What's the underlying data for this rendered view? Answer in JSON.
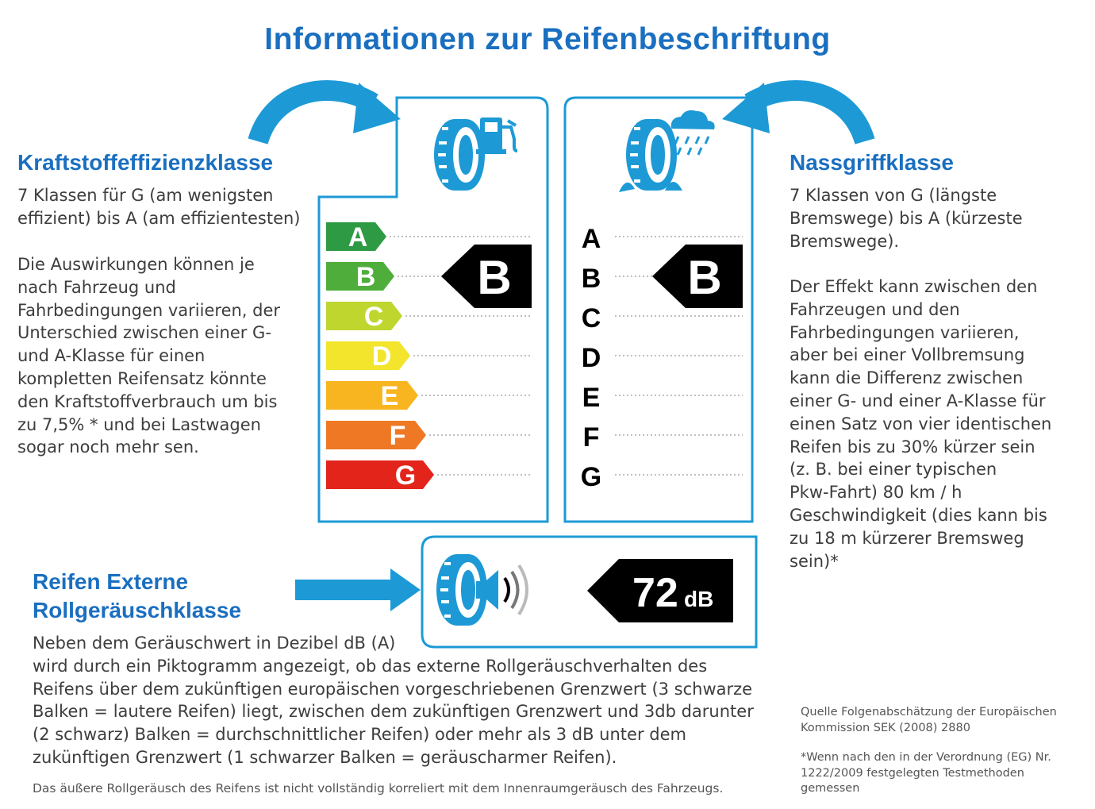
{
  "title": "Informationen zur Reifenbeschriftung",
  "fuel": {
    "heading": "Kraftstoffeffizienzklasse",
    "text1": "7 Klassen für G (am wenigsten\neffizient) bis A (am effizientesten)",
    "text2": "Die Auswirkungen können je\nnach Fahrzeug und\nFahrbedingungen variieren, der\nUnterschied zwischen einer G-\nund A-Klasse für einen\nkompletten Reifensatz könnte\nden Kraftstoffverbrauch um bis\nzu 7,5% * und bei Lastwagen\nsogar noch mehr sen.",
    "classes": [
      "A",
      "B",
      "C",
      "D",
      "E",
      "F",
      "G"
    ],
    "class_colors": [
      "#2e9a43",
      "#4fae3b",
      "#bfd62e",
      "#f2e52c",
      "#f8b51f",
      "#ee7823",
      "#e3241b"
    ],
    "selected": "B",
    "icon": "tire-fuel-pump-icon"
  },
  "wet": {
    "heading": "Nassgriffklasse",
    "text1": "7 Klassen von G (längste\nBremswege) bis A (kürzeste\nBremswege).",
    "text2": "Der Effekt kann zwischen den\nFahrzeugen und den\nFahrbedingungen variieren,\naber bei einer Vollbremsung\nkann die Differenz zwischen\neiner G- und einer A-Klasse für\neinen Satz von vier identischen\nReifen bis zu 30% kürzer sein\n(z. B. bei einer typischen\nPkw-Fahrt) 80 km / h\nGeschwindigkeit (dies kann bis\nzu 18 m kürzerer Bremsweg\nsein)*",
    "classes": [
      "A",
      "B",
      "C",
      "D",
      "E",
      "F",
      "G"
    ],
    "selected": "B",
    "icon": "tire-rain-cloud-icon"
  },
  "noise": {
    "heading1": "Reifen Externe",
    "heading2": "Rollgeräuschklasse",
    "value": "72",
    "unit": "dB",
    "text": "Neben dem Geräuschwert in Dezibel dB (A)\nwird durch ein Piktogramm angezeigt, ob das externe Rollgeräuschverhalten des\nReifens über dem zukünftigen europäischen vorgeschriebenen Grenzwert (3 schwarze\nBalken = lautere Reifen) liegt, zwischen dem zukünftigen Grenzwert und 3db darunter\n(2 schwarz) Balken = durchschnittlicher Reifen) oder mehr als 3 dB unter dem\nzukünftigen Grenzwert (1 schwarzer Balken = geräuscharmer Reifen).",
    "note": "Das äußere Rollgeräusch des Reifens ist nicht vollständig korreliert mit dem Innenraumgeräusch des Fahrzeugs.",
    "icon": "tire-speaker-icon"
  },
  "source": "Quelle Folgenabschätzung der Europäischen\nKommission SEK (2008) 2880",
  "footnote": "*Wenn nach den in der Verordnung (EG) Nr.\n1222/2009 festgelegten Testmethoden\ngemessen",
  "colors": {
    "brand_blue": "#1a6fc0",
    "icon_blue": "#1d9ad6",
    "black": "#000000"
  }
}
